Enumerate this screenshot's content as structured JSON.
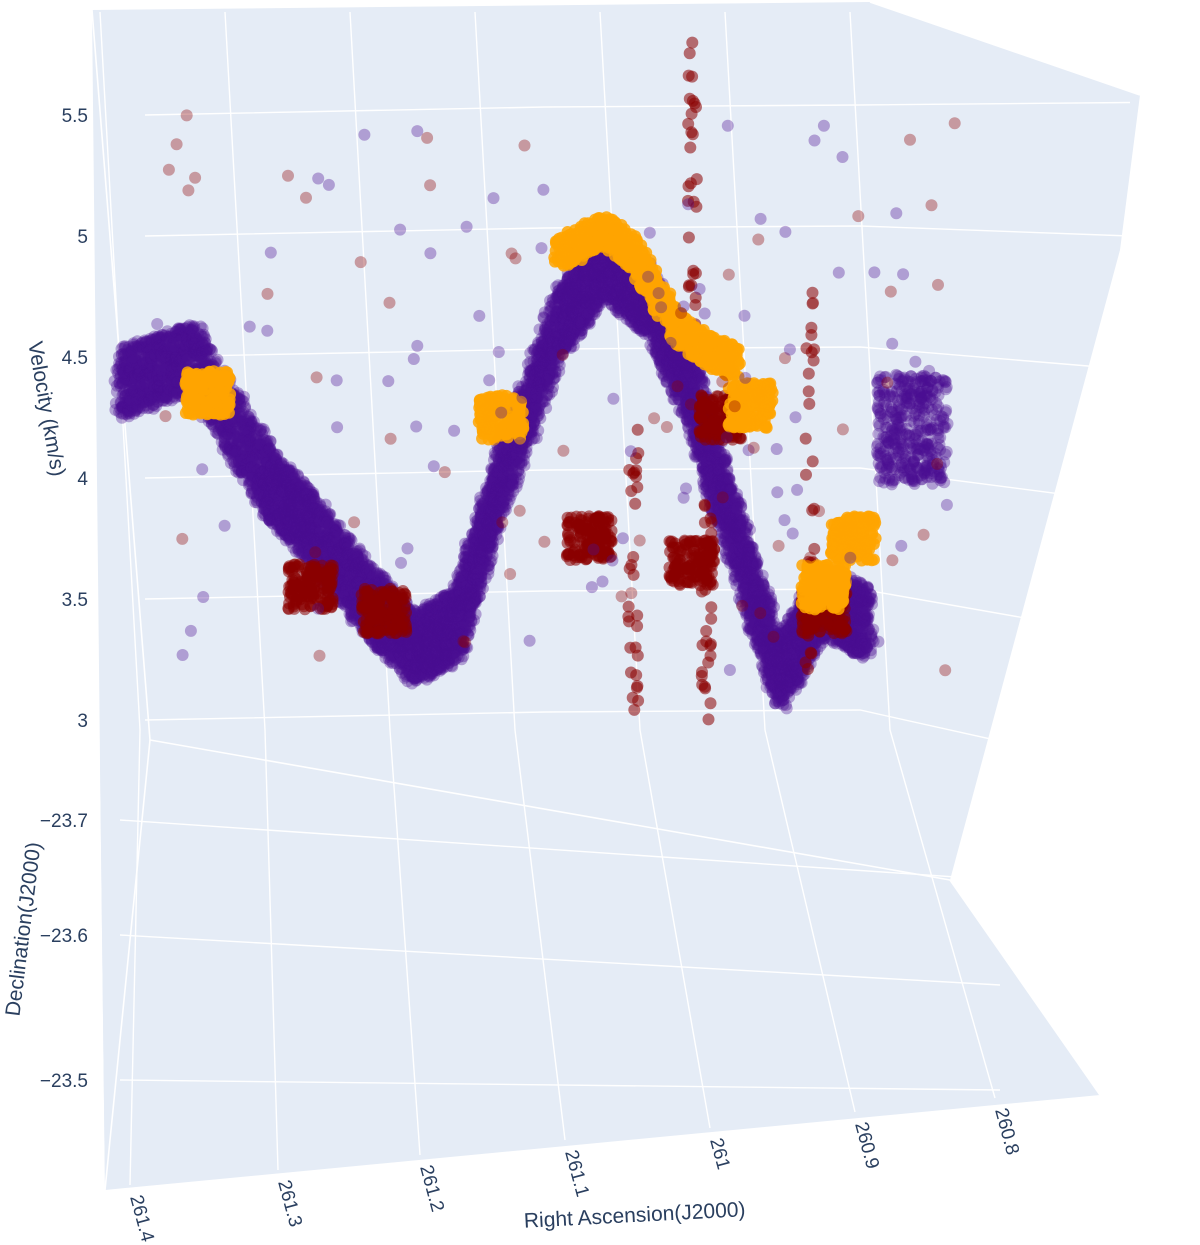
{
  "chart_data": {
    "type": "scatter3d",
    "title": "",
    "axes": {
      "x": {
        "label": "Right Ascension(J2000)",
        "ticks": [
          "261.4",
          "261.3",
          "261.2",
          "261.1",
          "261",
          "260.9",
          "260.8"
        ]
      },
      "y": {
        "label": "Declination(J2000)",
        "ticks": [
          "−23.7",
          "−23.6",
          "−23.5"
        ]
      },
      "z": {
        "label": "Velocity (km/s)",
        "ticks": [
          "3",
          "3.5",
          "4",
          "4.5",
          "5",
          "5.5"
        ],
        "range": [
          3,
          5.8
        ]
      }
    },
    "series": [
      {
        "color": "#4b0f91",
        "opacity": 0.35,
        "ridge": [
          [
            261.4,
            4.45
          ],
          [
            261.35,
            4.55
          ],
          [
            261.3,
            4.05
          ],
          [
            261.27,
            3.85
          ],
          [
            261.23,
            3.55
          ],
          [
            261.2,
            3.35
          ],
          [
            261.17,
            3.45
          ],
          [
            261.14,
            4.05
          ],
          [
            261.1,
            4.7
          ],
          [
            261.07,
            4.95
          ],
          [
            261.04,
            4.8
          ],
          [
            261.01,
            4.4
          ],
          [
            260.98,
            3.8
          ],
          [
            260.95,
            3.25
          ],
          [
            260.92,
            3.55
          ],
          [
            260.89,
            3.45
          ]
        ],
        "clusters": [
          [
            260.86,
            4.2
          ]
        ]
      },
      {
        "color": "#8b0000",
        "opacity": 0.55,
        "clusters": [
          [
            261.27,
            3.55
          ],
          [
            261.22,
            3.45
          ],
          [
            261.08,
            3.75
          ],
          [
            261.01,
            3.65
          ],
          [
            260.99,
            4.25
          ],
          [
            260.92,
            3.45
          ]
        ],
        "spurs": [
          [
            261.05,
            4.2,
            3.0
          ],
          [
            261.0,
            3.9,
            3.0
          ],
          [
            260.93,
            4.8,
            3.2
          ],
          [
            261.01,
            5.8,
            4.6
          ]
        ]
      },
      {
        "color": "#ffa500",
        "opacity": 0.85,
        "ridge": [
          [
            261.1,
            4.95
          ],
          [
            261.07,
            5.05
          ],
          [
            261.05,
            4.95
          ],
          [
            261.02,
            4.65
          ],
          [
            261.0,
            4.55
          ],
          [
            260.98,
            4.5
          ]
        ],
        "clusters": [
          [
            261.34,
            4.35
          ],
          [
            260.97,
            4.3
          ],
          [
            261.14,
            4.25
          ],
          [
            260.9,
            3.75
          ],
          [
            260.92,
            3.55
          ]
        ]
      }
    ]
  }
}
